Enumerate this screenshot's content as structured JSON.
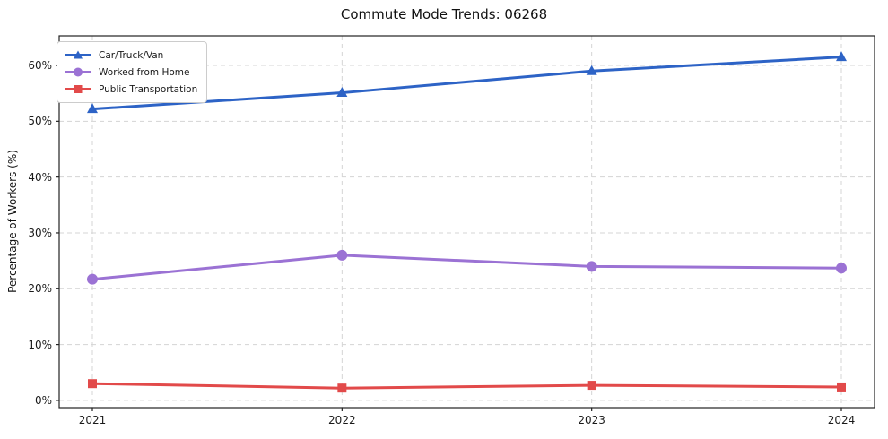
{
  "title": "Commute Mode Trends: 06268",
  "chart_data": {
    "type": "line",
    "title": "Commute Mode Trends: 06268",
    "xlabel": "",
    "ylabel": "Percentage of Workers (%)",
    "x": [
      2021,
      2022,
      2023,
      2024
    ],
    "xtick_labels": [
      "2021",
      "2022",
      "2023",
      "2024"
    ],
    "yticks": [
      0,
      10,
      20,
      30,
      40,
      50,
      60
    ],
    "ytick_labels": [
      "0%",
      "10%",
      "20%",
      "30%",
      "40%",
      "50%",
      "60%"
    ],
    "ylim": [
      -1.3,
      65.3
    ],
    "grid": true,
    "grid_style": "dashed",
    "legend_position": "upper left",
    "series": [
      {
        "name": "Car/Truck/Van",
        "color": "#2d63c6",
        "marker": "triangle",
        "values": [
          52.2,
          55.1,
          59.0,
          61.5
        ]
      },
      {
        "name": "Worked from Home",
        "color": "#9b72d4",
        "marker": "circle",
        "values": [
          21.7,
          26.0,
          24.0,
          23.7
        ]
      },
      {
        "name": "Public Transportation",
        "color": "#e24a4a",
        "marker": "square",
        "values": [
          3.0,
          2.2,
          2.7,
          2.4
        ]
      }
    ]
  },
  "colors": {
    "grid": "#d4d4d4",
    "spine": "#222222",
    "text": "#111111"
  }
}
